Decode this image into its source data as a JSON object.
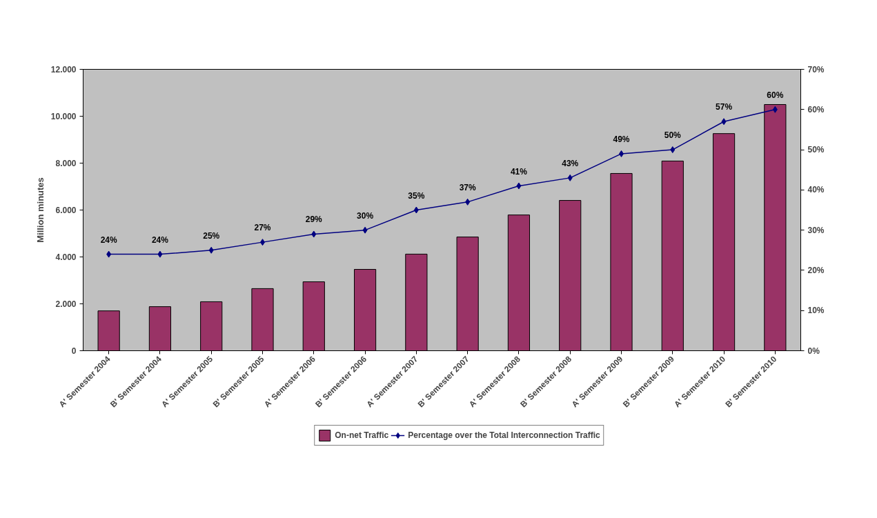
{
  "chart_data": {
    "type": "bar",
    "ylabel": "Million minutes",
    "categories": [
      "A' Semester 2004",
      "B' Semester 2004",
      "A' Semester 2005",
      "B' Semester 2005",
      "A' Semester 2006",
      "B' Semester 2006",
      "A' Semester 2007",
      "B' Semester 2007",
      "A' Semester 2008",
      "B' Semester 2008",
      "A' Semester 2009",
      "B' Semester 2009",
      "A' Semester 2010",
      "B' Semester 2010"
    ],
    "series": [
      {
        "name": "On-net Traffic",
        "color": "#993366",
        "values": [
          1700,
          1880,
          2090,
          2650,
          2940,
          3470,
          4120,
          4850,
          5790,
          6410,
          7560,
          8090,
          9260,
          10500
        ]
      },
      {
        "name": "Percentage over the Total Interconnection Traffic",
        "type": "line",
        "axis": "y2",
        "color": "#000080",
        "marker": "diamond",
        "values": [
          24,
          24,
          25,
          27,
          29,
          30,
          35,
          37,
          41,
          43,
          49,
          50,
          57,
          60
        ],
        "value_labels": [
          "24%",
          "24%",
          "25%",
          "27%",
          "29%",
          "30%",
          "35%",
          "37%",
          "41%",
          "43%",
          "49%",
          "50%",
          "57%",
          "60%"
        ]
      }
    ],
    "ylim": [
      0,
      12000
    ],
    "yticks": [
      {
        "value": 0,
        "label": "0"
      },
      {
        "value": 2000,
        "label": "2.000"
      },
      {
        "value": 4000,
        "label": "4.000"
      },
      {
        "value": 6000,
        "label": "6.000"
      },
      {
        "value": 8000,
        "label": "8.000"
      },
      {
        "value": 10000,
        "label": "10.000"
      },
      {
        "value": 12000,
        "label": "12.000"
      }
    ],
    "y2lim": [
      0,
      70
    ],
    "y2ticks": [
      {
        "value": 0,
        "label": "0%"
      },
      {
        "value": 10,
        "label": "10%"
      },
      {
        "value": 20,
        "label": "20%"
      },
      {
        "value": 30,
        "label": "30%"
      },
      {
        "value": 40,
        "label": "40%"
      },
      {
        "value": 50,
        "label": "50%"
      },
      {
        "value": 60,
        "label": "60%"
      },
      {
        "value": 70,
        "label": "70%"
      }
    ],
    "grid": false,
    "legend": "bottom"
  }
}
